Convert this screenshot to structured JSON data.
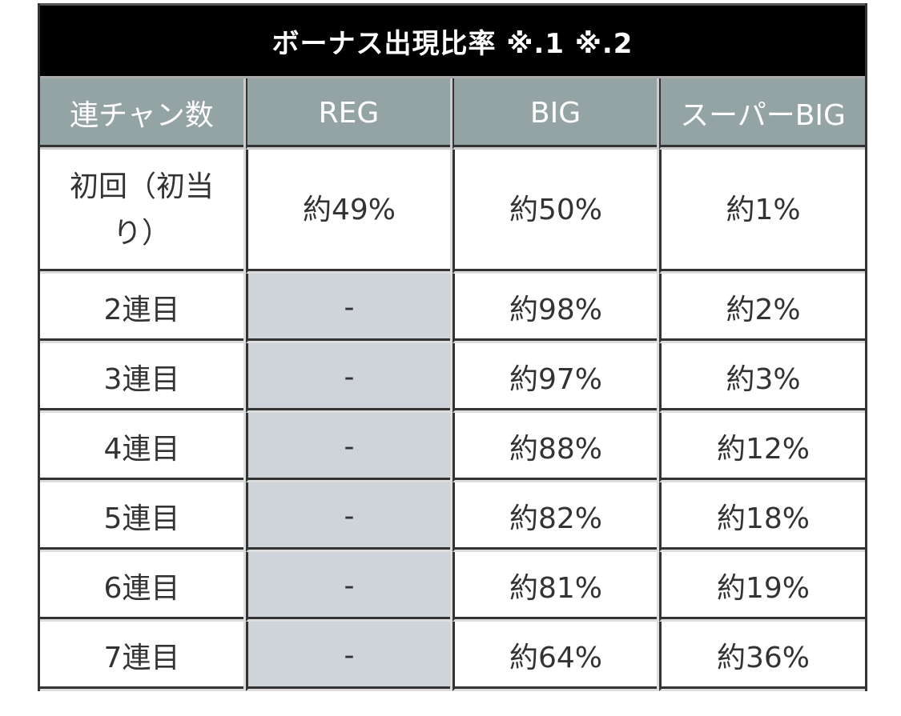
{
  "table": {
    "title": "ボーナス出現比率 ※.1 ※.2",
    "headers": [
      "連チャン数",
      "REG",
      "BIG",
      "スーパーBIG"
    ],
    "rows": [
      {
        "label": "初回（初当り）",
        "reg": "約49%",
        "big": "約50%",
        "super_big": "約1%"
      },
      {
        "label": "2連目",
        "reg": "-",
        "big": "約98%",
        "super_big": "約2%"
      },
      {
        "label": "3連目",
        "reg": "-",
        "big": "約97%",
        "super_big": "約3%"
      },
      {
        "label": "4連目",
        "reg": "-",
        "big": "約88%",
        "super_big": "約12%"
      },
      {
        "label": "5連目",
        "reg": "-",
        "big": "約82%",
        "super_big": "約18%"
      },
      {
        "label": "6連目",
        "reg": "-",
        "big": "約81%",
        "super_big": "約19%"
      },
      {
        "label": "7連目",
        "reg": "-",
        "big": "約64%",
        "super_big": "約36%"
      }
    ]
  },
  "colors": {
    "title_bg": "#000000",
    "header_bg": "#94a3a3",
    "na_cell_bg": "#cfd3da",
    "border": "#333333",
    "text": "#333333"
  }
}
